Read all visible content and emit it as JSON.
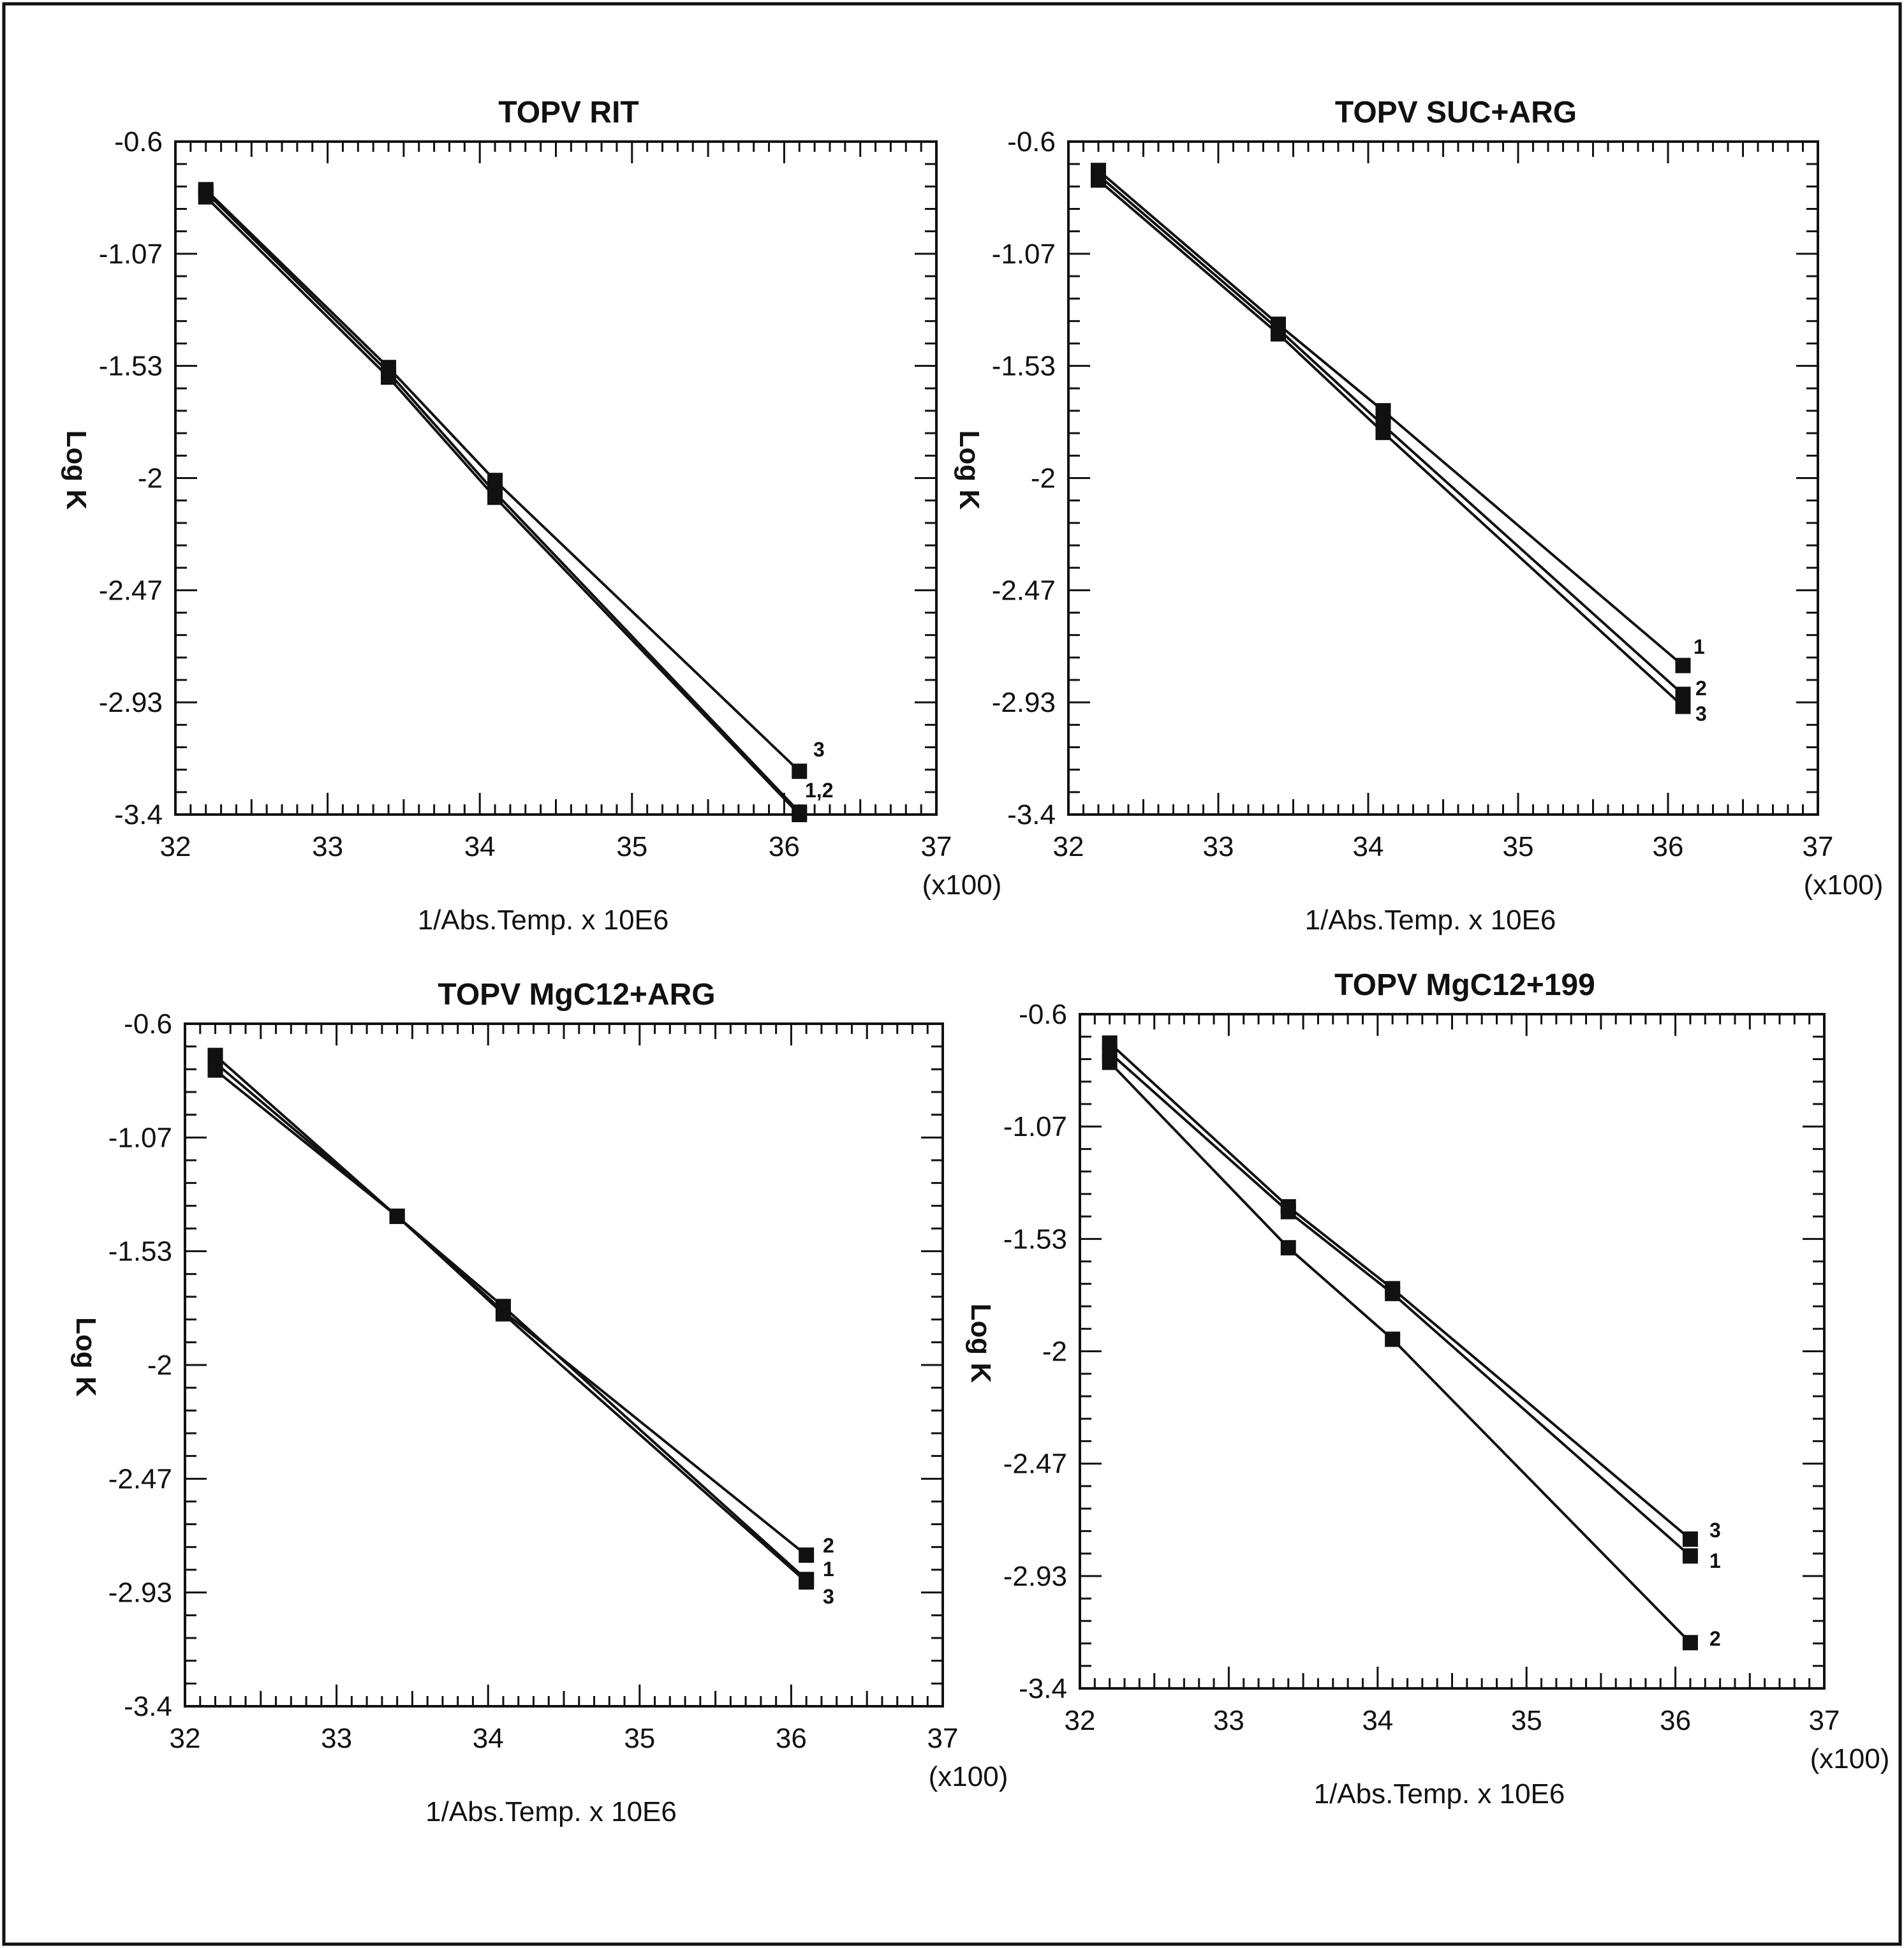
{
  "colors": {
    "ink": "#111111",
    "background": "#ffffff"
  },
  "chart_data": [
    {
      "type": "line",
      "title": "TOPV RIT",
      "xlabel": "1/Abs.Temp. x 10E6",
      "xmultiplier": "(x100)",
      "ylabel": "Log K",
      "xlim": [
        32,
        37
      ],
      "ylim": [
        -3.4,
        -0.6
      ],
      "xticks": [
        "32",
        "33",
        "34",
        "35",
        "36",
        "37"
      ],
      "yticks": [
        "-0.6",
        "-1.07",
        "-1.53",
        "-2",
        "-2.47",
        "-2.93",
        "-3.4"
      ],
      "grid": false,
      "x": [
        32.2,
        33.4,
        34.1,
        36.1
      ],
      "series": [
        {
          "name": "1",
          "values": [
            -0.83,
            -1.58,
            -2.08,
            -3.4
          ]
        },
        {
          "name": "2",
          "values": [
            -0.81,
            -1.56,
            -2.06,
            -3.39
          ]
        },
        {
          "name": "3",
          "values": [
            -0.8,
            -1.54,
            -2.01,
            -3.22
          ]
        }
      ],
      "series_labels": [
        {
          "text": "3"
        },
        {
          "text": "1,2"
        }
      ]
    },
    {
      "type": "line",
      "title": "TOPV SUC+ARG",
      "xlabel": "1/Abs.Temp. x 10E6",
      "xmultiplier": "(x100)",
      "ylabel": "Log K",
      "xlim": [
        32,
        37
      ],
      "ylim": [
        -3.4,
        -0.6
      ],
      "xticks": [
        "32",
        "33",
        "34",
        "35",
        "36",
        "37"
      ],
      "yticks": [
        "-0.6",
        "-1.07",
        "-1.53",
        "-2",
        "-2.47",
        "-2.93",
        "-3.4"
      ],
      "grid": false,
      "x": [
        32.2,
        33.4,
        34.1,
        36.1
      ],
      "series": [
        {
          "name": "1",
          "values": [
            -0.72,
            -1.36,
            -1.72,
            -2.78
          ]
        },
        {
          "name": "2",
          "values": [
            -0.74,
            -1.38,
            -1.78,
            -2.9
          ]
        },
        {
          "name": "3",
          "values": [
            -0.76,
            -1.4,
            -1.81,
            -2.95
          ]
        }
      ],
      "series_labels": [
        {
          "text": "1"
        },
        {
          "text": "2"
        },
        {
          "text": "3"
        }
      ]
    },
    {
      "type": "line",
      "title": "TOPV MgC12+ARG",
      "xlabel": "1/Abs.Temp. x 10E6",
      "xmultiplier": "(x100)",
      "ylabel": "Log K",
      "xlim": [
        32,
        37
      ],
      "ylim": [
        -3.4,
        -0.6
      ],
      "xticks": [
        "32",
        "33",
        "34",
        "35",
        "36",
        "37"
      ],
      "yticks": [
        "-0.6",
        "-1.07",
        "-1.53",
        "-2",
        "-2.47",
        "-2.93",
        "-3.4"
      ],
      "grid": false,
      "x": [
        32.2,
        33.4,
        34.1,
        36.1
      ],
      "series": [
        {
          "name": "1",
          "values": [
            -0.73,
            -1.39,
            -1.76,
            -2.88
          ]
        },
        {
          "name": "2",
          "values": [
            -0.76,
            -1.39,
            -1.78,
            -2.78
          ]
        },
        {
          "name": "3",
          "values": [
            -0.79,
            -1.39,
            -1.79,
            -2.89
          ]
        }
      ],
      "series_labels": [
        {
          "text": "2"
        },
        {
          "text": "1"
        },
        {
          "text": "3"
        }
      ]
    },
    {
      "type": "line",
      "title": "TOPV MgC12+199",
      "xlabel": "1/Abs.Temp. x 10E6",
      "xmultiplier": "(x100)",
      "ylabel": "Log K",
      "xlim": [
        32,
        37
      ],
      "ylim": [
        -3.4,
        -0.6
      ],
      "xticks": [
        "32",
        "33",
        "34",
        "35",
        "36",
        "37"
      ],
      "yticks": [
        "-0.6",
        "-1.07",
        "-1.53",
        "-2",
        "-2.47",
        "-2.93",
        "-3.4"
      ],
      "grid": false,
      "x": [
        32.2,
        33.4,
        34.1,
        36.1
      ],
      "series": [
        {
          "name": "1",
          "values": [
            -0.76,
            -1.42,
            -1.76,
            -2.85
          ]
        },
        {
          "name": "2",
          "values": [
            -0.8,
            -1.57,
            -1.95,
            -3.21
          ]
        },
        {
          "name": "3",
          "values": [
            -0.72,
            -1.4,
            -1.74,
            -2.78
          ]
        }
      ],
      "series_labels": [
        {
          "text": "3"
        },
        {
          "text": "1"
        },
        {
          "text": "2"
        }
      ]
    }
  ]
}
